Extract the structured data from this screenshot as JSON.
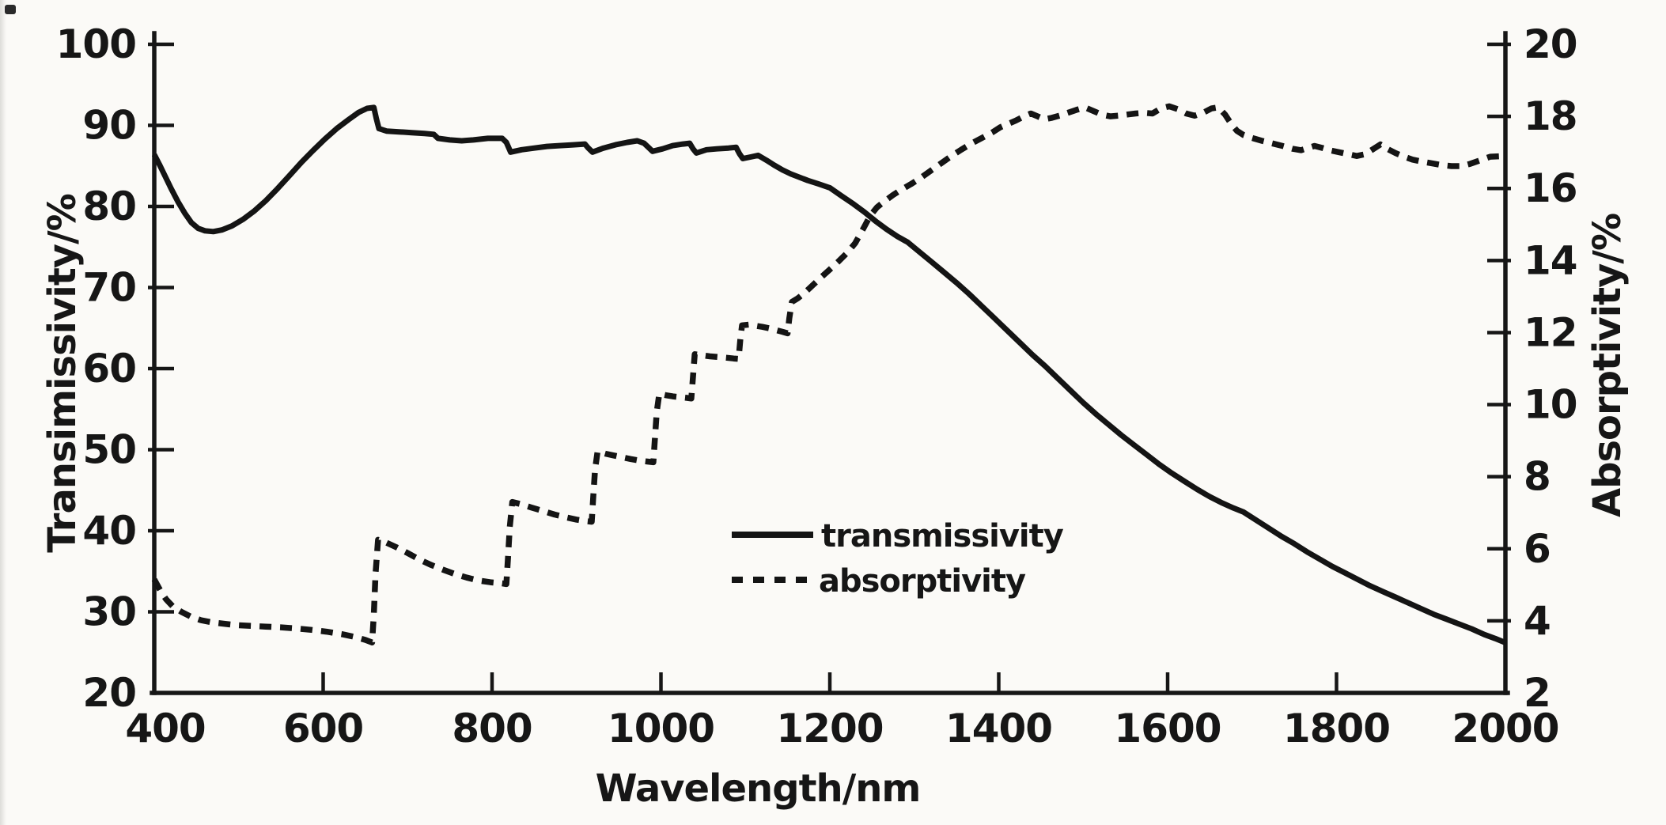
{
  "figure": {
    "background": "#fbfaf7",
    "ink_color": "#161616",
    "title": ""
  },
  "chart_data": {
    "type": "line",
    "title": "",
    "xlabel": "Wavelength/nm",
    "ylabel_left": "Transimissivity/%",
    "ylabel_right": "Absorptivity/%",
    "x_range": [
      400,
      2000
    ],
    "x_ticks": [
      400,
      600,
      800,
      1000,
      1200,
      1400,
      1600,
      1800,
      2000
    ],
    "y_left_range": [
      20,
      100
    ],
    "y_left_ticks": [
      20,
      30,
      40,
      50,
      60,
      70,
      80,
      90,
      100
    ],
    "y_right_range": [
      2,
      20
    ],
    "y_right_ticks": [
      2,
      4,
      6,
      8,
      10,
      12,
      14,
      16,
      18,
      20
    ],
    "grid": false,
    "legend": {
      "position": "inside lower-center",
      "entries": [
        {
          "label": "transmissivity",
          "style": "solid"
        },
        {
          "label": "absorptivity",
          "style": "dashed"
        }
      ]
    },
    "series": [
      {
        "name": "transmissivity",
        "axis": "left",
        "style": "solid",
        "points": [
          [
            400,
            86.4
          ],
          [
            406,
            85.2
          ],
          [
            413,
            83.7
          ],
          [
            420,
            82.2
          ],
          [
            428,
            80.6
          ],
          [
            436,
            79.2
          ],
          [
            444,
            78.0
          ],
          [
            452,
            77.3
          ],
          [
            460,
            77.0
          ],
          [
            470,
            76.9
          ],
          [
            480,
            77.1
          ],
          [
            492,
            77.6
          ],
          [
            505,
            78.4
          ],
          [
            518,
            79.4
          ],
          [
            532,
            80.7
          ],
          [
            546,
            82.2
          ],
          [
            560,
            83.8
          ],
          [
            574,
            85.4
          ],
          [
            588,
            86.9
          ],
          [
            602,
            88.3
          ],
          [
            616,
            89.6
          ],
          [
            630,
            90.7
          ],
          [
            642,
            91.6
          ],
          [
            652,
            92.1
          ],
          [
            660,
            92.2
          ],
          [
            663,
            90.8
          ],
          [
            666,
            89.6
          ],
          [
            675,
            89.3
          ],
          [
            690,
            89.2
          ],
          [
            705,
            89.1
          ],
          [
            720,
            89.0
          ],
          [
            731,
            88.9
          ],
          [
            736,
            88.4
          ],
          [
            750,
            88.2
          ],
          [
            764,
            88.1
          ],
          [
            778,
            88.2
          ],
          [
            795,
            88.4
          ],
          [
            812,
            88.4
          ],
          [
            817,
            87.9
          ],
          [
            822,
            86.7
          ],
          [
            835,
            87.0
          ],
          [
            850,
            87.2
          ],
          [
            865,
            87.4
          ],
          [
            880,
            87.5
          ],
          [
            896,
            87.6
          ],
          [
            910,
            87.7
          ],
          [
            914,
            87.2
          ],
          [
            919,
            86.7
          ],
          [
            932,
            87.2
          ],
          [
            946,
            87.6
          ],
          [
            960,
            87.9
          ],
          [
            972,
            88.1
          ],
          [
            980,
            87.8
          ],
          [
            986,
            87.2
          ],
          [
            990,
            86.8
          ],
          [
            1002,
            87.1
          ],
          [
            1014,
            87.5
          ],
          [
            1026,
            87.7
          ],
          [
            1034,
            87.8
          ],
          [
            1038,
            87.1
          ],
          [
            1042,
            86.6
          ],
          [
            1054,
            87.0
          ],
          [
            1066,
            87.1
          ],
          [
            1080,
            87.2
          ],
          [
            1089,
            87.3
          ],
          [
            1093,
            86.5
          ],
          [
            1097,
            85.9
          ],
          [
            1106,
            86.1
          ],
          [
            1115,
            86.3
          ],
          [
            1125,
            85.7
          ],
          [
            1134,
            85.1
          ],
          [
            1144,
            84.5
          ],
          [
            1154,
            84.0
          ],
          [
            1164,
            83.6
          ],
          [
            1174,
            83.2
          ],
          [
            1186,
            82.8
          ],
          [
            1200,
            82.3
          ],
          [
            1214,
            81.3
          ],
          [
            1228,
            80.3
          ],
          [
            1241,
            79.3
          ],
          [
            1254,
            78.2
          ],
          [
            1267,
            77.2
          ],
          [
            1280,
            76.3
          ],
          [
            1292,
            75.6
          ],
          [
            1306,
            74.4
          ],
          [
            1320,
            73.2
          ],
          [
            1335,
            71.9
          ],
          [
            1350,
            70.6
          ],
          [
            1365,
            69.2
          ],
          [
            1380,
            67.7
          ],
          [
            1395,
            66.2
          ],
          [
            1410,
            64.7
          ],
          [
            1425,
            63.2
          ],
          [
            1440,
            61.7
          ],
          [
            1455,
            60.3
          ],
          [
            1470,
            58.8
          ],
          [
            1485,
            57.3
          ],
          [
            1500,
            55.8
          ],
          [
            1515,
            54.4
          ],
          [
            1530,
            53.1
          ],
          [
            1545,
            51.8
          ],
          [
            1560,
            50.6
          ],
          [
            1575,
            49.4
          ],
          [
            1590,
            48.2
          ],
          [
            1605,
            47.1
          ],
          [
            1620,
            46.1
          ],
          [
            1635,
            45.1
          ],
          [
            1650,
            44.2
          ],
          [
            1665,
            43.4
          ],
          [
            1678,
            42.8
          ],
          [
            1690,
            42.3
          ],
          [
            1705,
            41.3
          ],
          [
            1720,
            40.3
          ],
          [
            1735,
            39.3
          ],
          [
            1750,
            38.4
          ],
          [
            1765,
            37.4
          ],
          [
            1780,
            36.5
          ],
          [
            1795,
            35.6
          ],
          [
            1810,
            34.8
          ],
          [
            1825,
            34.0
          ],
          [
            1840,
            33.2
          ],
          [
            1855,
            32.5
          ],
          [
            1870,
            31.8
          ],
          [
            1885,
            31.1
          ],
          [
            1900,
            30.4
          ],
          [
            1915,
            29.7
          ],
          [
            1930,
            29.1
          ],
          [
            1945,
            28.5
          ],
          [
            1960,
            27.9
          ],
          [
            1975,
            27.2
          ],
          [
            1988,
            26.7
          ],
          [
            2000,
            26.2
          ]
        ]
      },
      {
        "name": "absorptivity",
        "axis": "right",
        "style": "dashed",
        "points": [
          [
            400,
            5.15
          ],
          [
            407,
            4.85
          ],
          [
            414,
            4.6
          ],
          [
            422,
            4.4
          ],
          [
            432,
            4.25
          ],
          [
            443,
            4.12
          ],
          [
            455,
            4.02
          ],
          [
            468,
            3.96
          ],
          [
            482,
            3.92
          ],
          [
            498,
            3.88
          ],
          [
            515,
            3.86
          ],
          [
            532,
            3.84
          ],
          [
            550,
            3.82
          ],
          [
            568,
            3.79
          ],
          [
            586,
            3.75
          ],
          [
            604,
            3.7
          ],
          [
            622,
            3.63
          ],
          [
            638,
            3.55
          ],
          [
            650,
            3.47
          ],
          [
            658,
            3.4
          ],
          [
            660,
            4.2
          ],
          [
            662,
            5.3
          ],
          [
            665,
            6.25
          ],
          [
            674,
            6.18
          ],
          [
            686,
            6.05
          ],
          [
            700,
            5.88
          ],
          [
            714,
            5.7
          ],
          [
            728,
            5.55
          ],
          [
            742,
            5.42
          ],
          [
            756,
            5.3
          ],
          [
            770,
            5.2
          ],
          [
            784,
            5.12
          ],
          [
            798,
            5.07
          ],
          [
            812,
            5.04
          ],
          [
            817,
            5.02
          ],
          [
            819,
            5.8
          ],
          [
            821,
            6.6
          ],
          [
            824,
            7.3
          ],
          [
            834,
            7.24
          ],
          [
            846,
            7.15
          ],
          [
            860,
            7.05
          ],
          [
            874,
            6.95
          ],
          [
            888,
            6.87
          ],
          [
            900,
            6.81
          ],
          [
            910,
            6.77
          ],
          [
            918,
            6.75
          ],
          [
            920,
            7.5
          ],
          [
            922,
            8.2
          ],
          [
            925,
            8.7
          ],
          [
            934,
            8.64
          ],
          [
            944,
            8.59
          ],
          [
            954,
            8.54
          ],
          [
            964,
            8.49
          ],
          [
            974,
            8.45
          ],
          [
            984,
            8.42
          ],
          [
            991,
            8.4
          ],
          [
            993,
            9.1
          ],
          [
            995,
            9.8
          ],
          [
            998,
            10.3
          ],
          [
            1006,
            10.26
          ],
          [
            1014,
            10.23
          ],
          [
            1022,
            10.21
          ],
          [
            1030,
            10.19
          ],
          [
            1036,
            10.17
          ],
          [
            1038,
            10.8
          ],
          [
            1040,
            11.4
          ],
          [
            1048,
            11.37
          ],
          [
            1058,
            11.34
          ],
          [
            1068,
            11.32
          ],
          [
            1078,
            11.3
          ],
          [
            1086,
            11.28
          ],
          [
            1092,
            11.27
          ],
          [
            1094,
            11.8
          ],
          [
            1096,
            12.2
          ],
          [
            1104,
            12.22
          ],
          [
            1112,
            12.19
          ],
          [
            1120,
            12.16
          ],
          [
            1128,
            12.12
          ],
          [
            1136,
            12.07
          ],
          [
            1144,
            12.02
          ],
          [
            1150,
            11.98
          ],
          [
            1152,
            12.4
          ],
          [
            1155,
            12.85
          ],
          [
            1162,
            12.95
          ],
          [
            1170,
            13.1
          ],
          [
            1180,
            13.32
          ],
          [
            1190,
            13.54
          ],
          [
            1200,
            13.75
          ],
          [
            1210,
            13.97
          ],
          [
            1220,
            14.2
          ],
          [
            1230,
            14.48
          ],
          [
            1240,
            14.9
          ],
          [
            1248,
            15.25
          ],
          [
            1256,
            15.48
          ],
          [
            1265,
            15.65
          ],
          [
            1275,
            15.82
          ],
          [
            1285,
            15.97
          ],
          [
            1296,
            16.12
          ],
          [
            1308,
            16.3
          ],
          [
            1320,
            16.5
          ],
          [
            1332,
            16.7
          ],
          [
            1344,
            16.9
          ],
          [
            1356,
            17.08
          ],
          [
            1368,
            17.25
          ],
          [
            1380,
            17.4
          ],
          [
            1392,
            17.55
          ],
          [
            1402,
            17.7
          ],
          [
            1410,
            17.78
          ],
          [
            1420,
            17.88
          ],
          [
            1430,
            18.0
          ],
          [
            1438,
            18.08
          ],
          [
            1446,
            18.0
          ],
          [
            1454,
            17.92
          ],
          [
            1463,
            17.96
          ],
          [
            1472,
            18.02
          ],
          [
            1482,
            18.1
          ],
          [
            1492,
            18.18
          ],
          [
            1502,
            18.25
          ],
          [
            1512,
            18.15
          ],
          [
            1522,
            18.05
          ],
          [
            1532,
            18.0
          ],
          [
            1542,
            18.02
          ],
          [
            1552,
            18.05
          ],
          [
            1562,
            18.08
          ],
          [
            1572,
            18.1
          ],
          [
            1582,
            18.08
          ],
          [
            1592,
            18.22
          ],
          [
            1602,
            18.28
          ],
          [
            1612,
            18.2
          ],
          [
            1622,
            18.08
          ],
          [
            1632,
            18.02
          ],
          [
            1642,
            18.1
          ],
          [
            1652,
            18.22
          ],
          [
            1660,
            18.25
          ],
          [
            1668,
            18.05
          ],
          [
            1675,
            17.8
          ],
          [
            1682,
            17.6
          ],
          [
            1690,
            17.48
          ],
          [
            1700,
            17.4
          ],
          [
            1712,
            17.32
          ],
          [
            1724,
            17.25
          ],
          [
            1736,
            17.18
          ],
          [
            1748,
            17.1
          ],
          [
            1758,
            17.06
          ],
          [
            1766,
            17.12
          ],
          [
            1774,
            17.18
          ],
          [
            1784,
            17.12
          ],
          [
            1794,
            17.05
          ],
          [
            1804,
            17.0
          ],
          [
            1814,
            16.95
          ],
          [
            1824,
            16.9
          ],
          [
            1834,
            16.95
          ],
          [
            1844,
            17.1
          ],
          [
            1852,
            17.22
          ],
          [
            1860,
            17.1
          ],
          [
            1870,
            16.98
          ],
          [
            1880,
            16.88
          ],
          [
            1890,
            16.8
          ],
          [
            1900,
            16.75
          ],
          [
            1912,
            16.7
          ],
          [
            1924,
            16.65
          ],
          [
            1936,
            16.62
          ],
          [
            1948,
            16.62
          ],
          [
            1958,
            16.68
          ],
          [
            1970,
            16.78
          ],
          [
            1982,
            16.88
          ],
          [
            2000,
            16.9
          ]
        ]
      }
    ]
  }
}
